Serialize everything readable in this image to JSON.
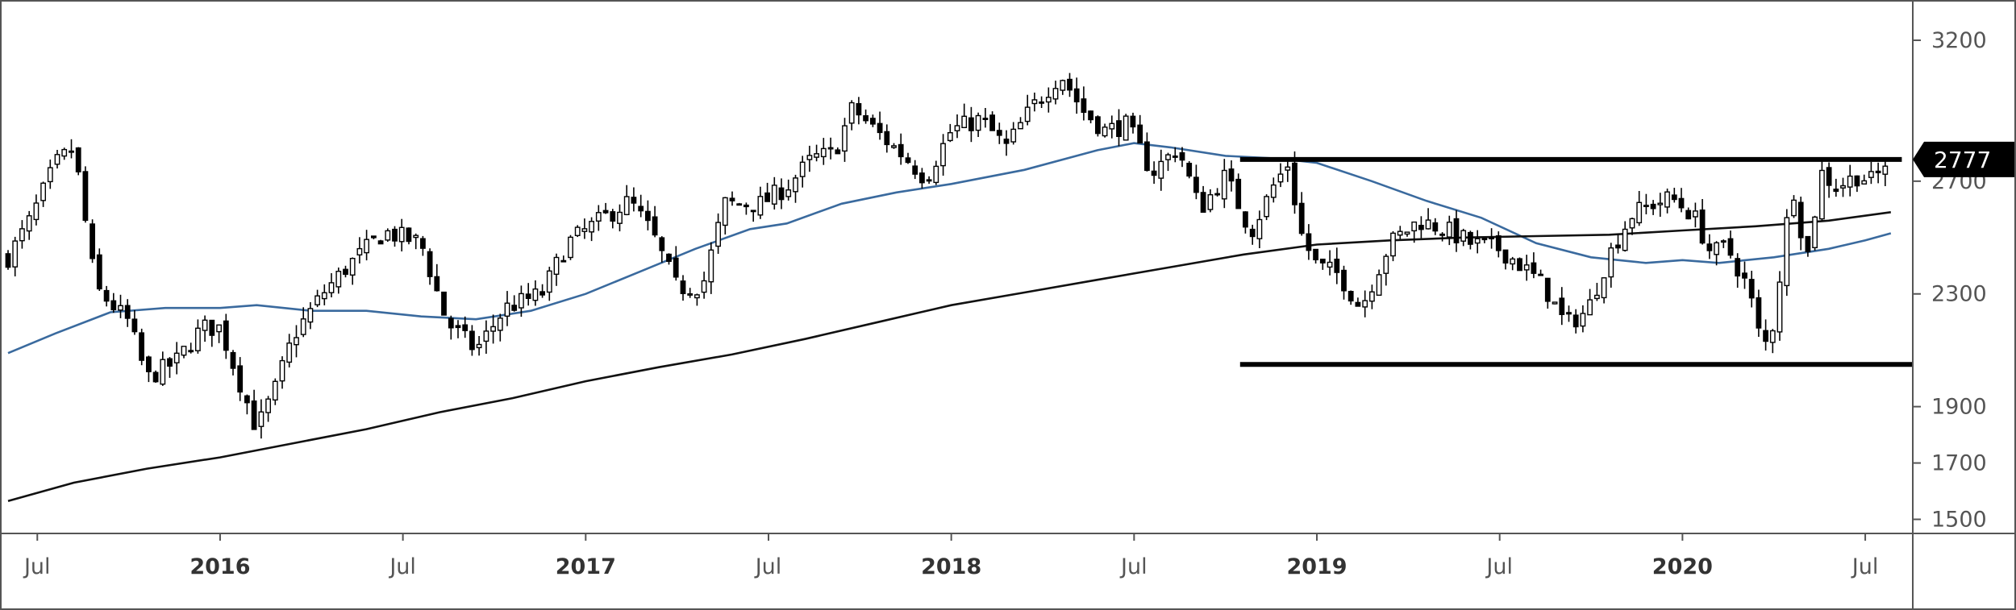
{
  "colors": {
    "candle_up_fill": "#ffffff",
    "candle_down_fill": "#000000",
    "candle_outline": "#000000",
    "ma_blue": "#3a6a9e",
    "ma_black": "#111111",
    "range_lines": "#000000",
    "last_price_bg": "#000000",
    "last_price_text": "#ffffff",
    "frame": "#555555"
  },
  "last_price_label": "2777",
  "chart_data": {
    "type": "candlestick",
    "ylim": [
      1450,
      3300
    ],
    "x_range": [
      2015.42,
      2020.63
    ],
    "y_ticks": [
      {
        "value": 1500,
        "label": "1500"
      },
      {
        "value": 1700,
        "label": "1700"
      },
      {
        "value": 1900,
        "label": "1900"
      },
      {
        "value": 2300,
        "label": "2300"
      },
      {
        "value": 2700,
        "label": "2700"
      },
      {
        "value": 3200,
        "label": "3200"
      }
    ],
    "x_ticks": [
      {
        "value": 2015.5,
        "label": "Jul",
        "bold": false
      },
      {
        "value": 2016.0,
        "label": "2016",
        "bold": true
      },
      {
        "value": 2016.5,
        "label": "Jul",
        "bold": false
      },
      {
        "value": 2017.0,
        "label": "2017",
        "bold": true
      },
      {
        "value": 2017.5,
        "label": "Jul",
        "bold": false
      },
      {
        "value": 2018.0,
        "label": "2018",
        "bold": true
      },
      {
        "value": 2018.5,
        "label": "Jul",
        "bold": false
      },
      {
        "value": 2019.0,
        "label": "2019",
        "bold": true
      },
      {
        "value": 2019.5,
        "label": "Jul",
        "bold": false
      },
      {
        "value": 2020.0,
        "label": "2020",
        "bold": true
      },
      {
        "value": 2020.5,
        "label": "Jul",
        "bold": false
      }
    ],
    "price_path": [
      [
        2015.42,
        2430
      ],
      [
        2015.48,
        2560
      ],
      [
        2015.55,
        2760
      ],
      [
        2015.6,
        2820
      ],
      [
        2015.66,
        2320
      ],
      [
        2015.75,
        2200
      ],
      [
        2015.8,
        2000
      ],
      [
        2015.88,
        2060
      ],
      [
        2015.95,
        2180
      ],
      [
        2016.0,
        2180
      ],
      [
        2016.05,
        2000
      ],
      [
        2016.1,
        1820
      ],
      [
        2016.15,
        1960
      ],
      [
        2016.2,
        2150
      ],
      [
        2016.28,
        2300
      ],
      [
        2016.35,
        2400
      ],
      [
        2016.45,
        2520
      ],
      [
        2016.55,
        2480
      ],
      [
        2016.62,
        2200
      ],
      [
        2016.7,
        2100
      ],
      [
        2016.78,
        2250
      ],
      [
        2016.88,
        2300
      ],
      [
        2016.95,
        2480
      ],
      [
        2017.05,
        2570
      ],
      [
        2017.12,
        2630
      ],
      [
        2017.18,
        2520
      ],
      [
        2017.25,
        2320
      ],
      [
        2017.32,
        2330
      ],
      [
        2017.38,
        2620
      ],
      [
        2017.48,
        2620
      ],
      [
        2017.55,
        2680
      ],
      [
        2017.62,
        2780
      ],
      [
        2017.68,
        2800
      ],
      [
        2017.73,
        2960
      ],
      [
        2017.8,
        2870
      ],
      [
        2017.87,
        2790
      ],
      [
        2017.93,
        2710
      ],
      [
        2018.0,
        2880
      ],
      [
        2018.08,
        2920
      ],
      [
        2018.15,
        2820
      ],
      [
        2018.22,
        2960
      ],
      [
        2018.3,
        3080
      ],
      [
        2018.36,
        2950
      ],
      [
        2018.42,
        2880
      ],
      [
        2018.48,
        2900
      ],
      [
        2018.55,
        2730
      ],
      [
        2018.62,
        2820
      ],
      [
        2018.68,
        2600
      ],
      [
        2018.75,
        2720
      ],
      [
        2018.82,
        2520
      ],
      [
        2018.88,
        2680
      ],
      [
        2018.92,
        2760
      ],
      [
        2018.96,
        2500
      ],
      [
        2019.0,
        2400
      ],
      [
        2019.06,
        2370
      ],
      [
        2019.12,
        2250
      ],
      [
        2019.2,
        2480
      ],
      [
        2019.28,
        2560
      ],
      [
        2019.35,
        2530
      ],
      [
        2019.42,
        2480
      ],
      [
        2019.5,
        2460
      ],
      [
        2019.56,
        2400
      ],
      [
        2019.62,
        2330
      ],
      [
        2019.68,
        2190
      ],
      [
        2019.74,
        2240
      ],
      [
        2019.8,
        2440
      ],
      [
        2019.86,
        2580
      ],
      [
        2019.92,
        2620
      ],
      [
        2019.97,
        2640
      ],
      [
        2020.03,
        2580
      ],
      [
        2020.08,
        2440
      ],
      [
        2020.12,
        2470
      ],
      [
        2020.18,
        2320
      ],
      [
        2020.22,
        2100
      ],
      [
        2020.25,
        2200
      ],
      [
        2020.3,
        2700
      ],
      [
        2020.34,
        2420
      ],
      [
        2020.38,
        2730
      ],
      [
        2020.42,
        2680
      ],
      [
        2020.48,
        2720
      ],
      [
        2020.52,
        2700
      ],
      [
        2020.57,
        2777
      ]
    ],
    "series": [
      {
        "name": "",
        "color": "#3a6a9e",
        "points": [
          [
            2015.42,
            2090
          ],
          [
            2015.55,
            2160
          ],
          [
            2015.7,
            2235
          ],
          [
            2015.85,
            2250
          ],
          [
            2016.0,
            2250
          ],
          [
            2016.1,
            2260
          ],
          [
            2016.25,
            2240
          ],
          [
            2016.4,
            2240
          ],
          [
            2016.55,
            2220
          ],
          [
            2016.7,
            2210
          ],
          [
            2016.85,
            2240
          ],
          [
            2017.0,
            2300
          ],
          [
            2017.15,
            2380
          ],
          [
            2017.3,
            2460
          ],
          [
            2017.45,
            2530
          ],
          [
            2017.55,
            2550
          ],
          [
            2017.7,
            2620
          ],
          [
            2017.85,
            2660
          ],
          [
            2018.0,
            2690
          ],
          [
            2018.2,
            2740
          ],
          [
            2018.4,
            2810
          ],
          [
            2018.5,
            2835
          ],
          [
            2018.6,
            2820
          ],
          [
            2018.75,
            2790
          ],
          [
            2018.9,
            2780
          ],
          [
            2019.0,
            2765
          ],
          [
            2019.15,
            2700
          ],
          [
            2019.3,
            2630
          ],
          [
            2019.45,
            2570
          ],
          [
            2019.6,
            2480
          ],
          [
            2019.75,
            2430
          ],
          [
            2019.9,
            2410
          ],
          [
            2020.0,
            2420
          ],
          [
            2020.1,
            2410
          ],
          [
            2020.25,
            2430
          ],
          [
            2020.4,
            2460
          ],
          [
            2020.5,
            2490
          ],
          [
            2020.57,
            2515
          ]
        ]
      },
      {
        "name": "",
        "color": "#111111",
        "points": [
          [
            2015.42,
            1565
          ],
          [
            2015.6,
            1630
          ],
          [
            2015.8,
            1680
          ],
          [
            2016.0,
            1720
          ],
          [
            2016.2,
            1770
          ],
          [
            2016.4,
            1820
          ],
          [
            2016.6,
            1880
          ],
          [
            2016.8,
            1930
          ],
          [
            2017.0,
            1990
          ],
          [
            2017.2,
            2040
          ],
          [
            2017.4,
            2085
          ],
          [
            2017.6,
            2140
          ],
          [
            2017.8,
            2200
          ],
          [
            2018.0,
            2260
          ],
          [
            2018.2,
            2305
          ],
          [
            2018.4,
            2350
          ],
          [
            2018.6,
            2395
          ],
          [
            2018.8,
            2440
          ],
          [
            2019.0,
            2475
          ],
          [
            2019.2,
            2490
          ],
          [
            2019.4,
            2500
          ],
          [
            2019.6,
            2505
          ],
          [
            2019.8,
            2510
          ],
          [
            2020.0,
            2525
          ],
          [
            2020.2,
            2540
          ],
          [
            2020.4,
            2560
          ],
          [
            2020.57,
            2590
          ]
        ]
      }
    ],
    "range_lines": [
      {
        "value": 2777,
        "x_start": 2018.79,
        "x_end": 2020.6
      },
      {
        "value": 2050,
        "x_start": 2018.79,
        "x_end": 2020.63
      }
    ]
  }
}
